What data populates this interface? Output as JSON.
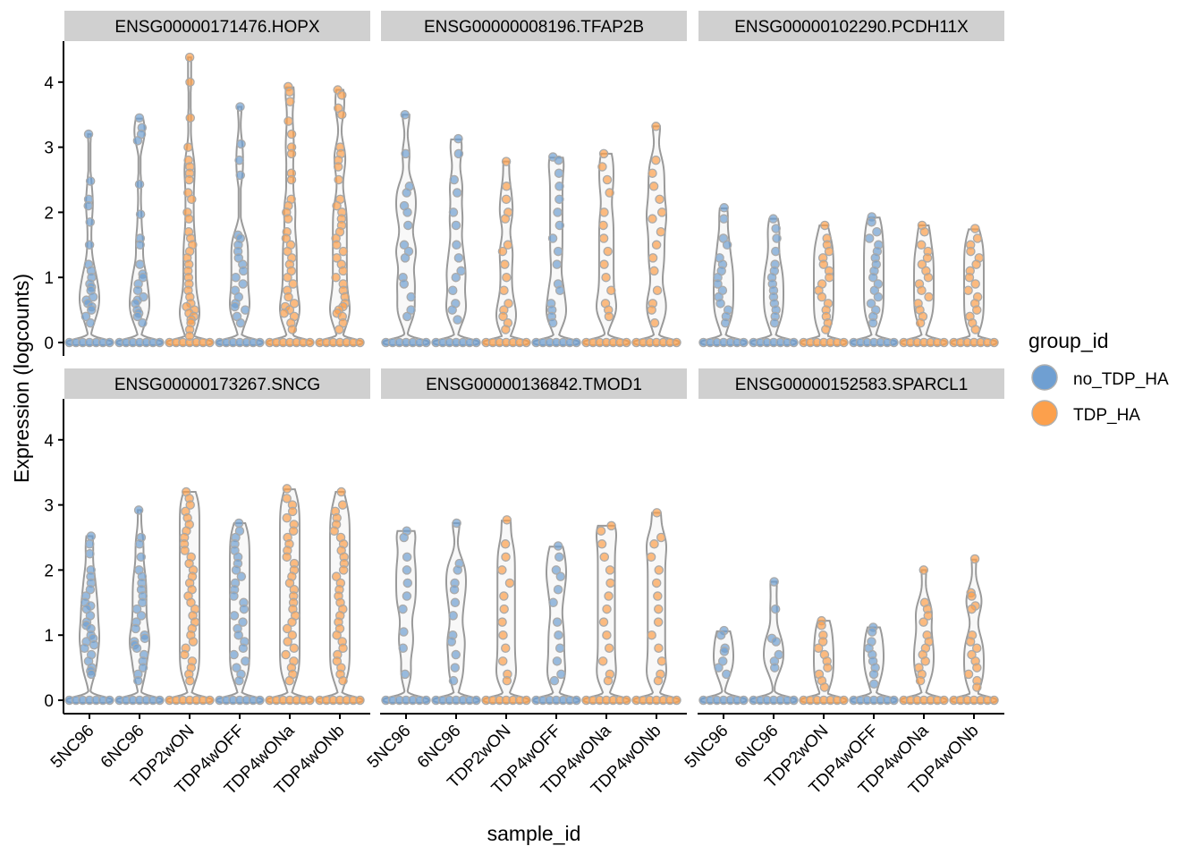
{
  "chart_data": {
    "type": "violin",
    "xlabel": "sample_id",
    "ylabel": "Expression (logcounts)",
    "ylim": [
      -0.2,
      4.6
    ],
    "yticks": [
      "0",
      "1",
      "2",
      "3",
      "4"
    ],
    "categories": [
      "5NC96",
      "6NC96",
      "TDP2wON",
      "TDP4wOFF",
      "TDP4wONa",
      "TDP4wONb"
    ],
    "category_group": [
      "no_TDP_HA",
      "no_TDP_HA",
      "TDP_HA",
      "no_TDP_HA",
      "TDP_HA",
      "TDP_HA"
    ],
    "legend": {
      "title": "group_id",
      "position": "right",
      "entries": [
        {
          "label": "no_TDP_HA",
          "color": "#6f9fd2"
        },
        {
          "label": "TDP_HA",
          "color": "#fca04c"
        }
      ]
    },
    "grid": false,
    "panels": [
      {
        "title": "ENSG00000171476.HOPX",
        "max": [
          3.2,
          3.45,
          4.38,
          3.62,
          3.93,
          3.88
        ],
        "points": [
          [
            3.2,
            2.48,
            2.2,
            2.1,
            1.85,
            1.5,
            1.2,
            1.1,
            1.0,
            0.9,
            0.85,
            0.8,
            0.7,
            0.65,
            0.6,
            0.55,
            0.5,
            0.4,
            0.3
          ],
          [
            3.45,
            3.3,
            3.2,
            3.1,
            2.43,
            1.97,
            1.6,
            1.5,
            1.2,
            1.05,
            1.0,
            0.9,
            0.8,
            0.7,
            0.65,
            0.6,
            0.5,
            0.45,
            0.4,
            0.3
          ],
          [
            4.38,
            4.0,
            3.45,
            3.0,
            2.8,
            2.7,
            2.6,
            2.5,
            2.3,
            2.2,
            2.0,
            1.9,
            1.7,
            1.6,
            1.5,
            1.4,
            1.3,
            1.2,
            1.1,
            1.0,
            0.9,
            0.8,
            0.7,
            0.6,
            0.55,
            0.5,
            0.45,
            0.4,
            0.35,
            0.3,
            0.2,
            0.1
          ],
          [
            3.62,
            3.05,
            2.8,
            2.57,
            1.65,
            1.6,
            1.5,
            1.4,
            1.3,
            1.2,
            1.1,
            1.0,
            0.9,
            0.8,
            0.7,
            0.6,
            0.55,
            0.5,
            0.4,
            0.3
          ],
          [
            3.93,
            3.85,
            3.7,
            3.4,
            3.2,
            3.0,
            2.9,
            2.6,
            2.5,
            2.2,
            2.1,
            2.0,
            1.9,
            1.7,
            1.6,
            1.5,
            1.4,
            1.3,
            1.2,
            1.1,
            1.0,
            0.9,
            0.8,
            0.7,
            0.6,
            0.55,
            0.5,
            0.45,
            0.4,
            0.3,
            0.2
          ],
          [
            3.88,
            3.8,
            3.6,
            3.5,
            3.0,
            2.9,
            2.8,
            2.7,
            2.5,
            2.2,
            2.1,
            2.0,
            1.9,
            1.8,
            1.7,
            1.6,
            1.5,
            1.4,
            1.3,
            1.2,
            1.1,
            1.0,
            0.9,
            0.8,
            0.7,
            0.6,
            0.55,
            0.5,
            0.45,
            0.4,
            0.3,
            0.2
          ]
        ]
      },
      {
        "title": "ENSG00000008196.TFAP2B",
        "max": [
          3.5,
          3.13,
          2.78,
          2.85,
          2.9,
          3.32
        ],
        "points": [
          [
            3.5,
            2.9,
            2.4,
            2.3,
            2.1,
            2.0,
            1.8,
            1.5,
            1.4,
            1.3,
            1.0,
            0.9,
            0.7,
            0.5,
            0.4
          ],
          [
            3.13,
            2.9,
            2.5,
            2.3,
            2.0,
            1.8,
            1.5,
            1.3,
            1.1,
            1.0,
            0.8,
            0.6,
            0.5,
            0.35
          ],
          [
            2.78,
            2.4,
            2.2,
            2.0,
            1.9,
            1.5,
            1.4,
            1.2,
            1.0,
            0.8,
            0.6,
            0.5,
            0.4,
            0.3,
            0.2
          ],
          [
            2.85,
            2.8,
            2.6,
            2.4,
            2.2,
            2.0,
            1.8,
            1.6,
            1.4,
            1.2,
            0.9,
            0.8,
            0.6,
            0.5,
            0.4,
            0.3
          ],
          [
            2.9,
            2.7,
            2.5,
            2.3,
            2.0,
            1.8,
            1.6,
            1.4,
            1.2,
            1.0,
            0.8,
            0.6,
            0.5,
            0.4
          ],
          [
            3.32,
            2.8,
            2.6,
            2.4,
            2.2,
            2.0,
            1.9,
            1.7,
            1.5,
            1.3,
            1.1,
            0.8,
            0.6,
            0.5,
            0.3
          ]
        ]
      },
      {
        "title": "ENSG00000102290.PCDH11X",
        "max": [
          2.07,
          1.9,
          1.8,
          1.93,
          1.8,
          1.75
        ],
        "points": [
          [
            2.07,
            1.9,
            1.6,
            1.5,
            1.3,
            1.2,
            1.1,
            1.0,
            0.9,
            0.8,
            0.7,
            0.6,
            0.5,
            0.4,
            0.3
          ],
          [
            1.9,
            1.75,
            1.6,
            1.4,
            1.2,
            1.1,
            1.0,
            0.9,
            0.8,
            0.7,
            0.6,
            0.5,
            0.4,
            0.3
          ],
          [
            1.8,
            1.6,
            1.5,
            1.4,
            1.3,
            1.2,
            1.1,
            1.0,
            0.9,
            0.8,
            0.7,
            0.6,
            0.5,
            0.4,
            0.3,
            0.2
          ],
          [
            1.93,
            1.85,
            1.7,
            1.6,
            1.5,
            1.4,
            1.3,
            1.2,
            1.1,
            1.0,
            0.9,
            0.8,
            0.7,
            0.6,
            0.5,
            0.4,
            0.3
          ],
          [
            1.8,
            1.7,
            1.5,
            1.4,
            1.3,
            1.2,
            1.1,
            1.0,
            0.9,
            0.8,
            0.7,
            0.6,
            0.5,
            0.4,
            0.3
          ],
          [
            1.75,
            1.6,
            1.5,
            1.4,
            1.3,
            1.2,
            1.1,
            1.0,
            0.9,
            0.8,
            0.7,
            0.6,
            0.5,
            0.4,
            0.3,
            0.2
          ]
        ]
      },
      {
        "title": "ENSG00000173267.SNCG",
        "max": [
          2.52,
          2.92,
          3.2,
          2.72,
          3.25,
          3.2
        ],
        "points": [
          [
            2.52,
            2.4,
            2.25,
            2.0,
            1.9,
            1.8,
            1.7,
            1.6,
            1.5,
            1.45,
            1.4,
            1.3,
            1.2,
            1.15,
            1.1,
            1.0,
            0.95,
            0.9,
            0.85,
            0.8,
            0.7,
            0.6,
            0.5,
            0.45,
            0.4
          ],
          [
            2.92,
            2.5,
            2.4,
            2.2,
            2.0,
            1.9,
            1.8,
            1.7,
            1.6,
            1.5,
            1.4,
            1.3,
            1.2,
            1.1,
            1.0,
            0.95,
            0.9,
            0.85,
            0.8,
            0.7,
            0.6,
            0.5,
            0.4,
            0.3
          ],
          [
            3.2,
            3.1,
            3.0,
            2.9,
            2.8,
            2.7,
            2.6,
            2.5,
            2.4,
            2.3,
            2.2,
            2.1,
            2.0,
            1.9,
            1.8,
            1.7,
            1.6,
            1.5,
            1.4,
            1.3,
            1.2,
            1.1,
            1.0,
            0.9,
            0.8,
            0.7,
            0.6,
            0.5,
            0.4,
            0.3
          ],
          [
            2.72,
            2.6,
            2.5,
            2.4,
            2.3,
            2.2,
            2.1,
            2.0,
            1.9,
            1.8,
            1.7,
            1.6,
            1.5,
            1.4,
            1.3,
            1.2,
            1.1,
            1.0,
            0.9,
            0.8,
            0.7,
            0.6,
            0.5,
            0.4,
            0.3
          ],
          [
            3.25,
            3.1,
            3.0,
            2.9,
            2.8,
            2.7,
            2.6,
            2.5,
            2.4,
            2.3,
            2.2,
            2.1,
            2.0,
            1.9,
            1.8,
            1.7,
            1.6,
            1.5,
            1.4,
            1.3,
            1.2,
            1.1,
            1.0,
            0.9,
            0.8,
            0.7,
            0.6,
            0.5,
            0.4,
            0.3
          ],
          [
            3.2,
            3.0,
            2.9,
            2.8,
            2.7,
            2.6,
            2.5,
            2.4,
            2.3,
            2.2,
            2.1,
            2.0,
            1.9,
            1.8,
            1.7,
            1.6,
            1.5,
            1.4,
            1.3,
            1.2,
            1.1,
            1.0,
            0.9,
            0.8,
            0.7,
            0.6,
            0.5,
            0.4,
            0.3
          ]
        ]
      },
      {
        "title": "ENSG00000136842.TMOD1",
        "max": [
          2.6,
          2.72,
          2.77,
          2.37,
          2.68,
          2.88
        ],
        "points": [
          [
            2.6,
            2.5,
            2.2,
            2.0,
            1.8,
            1.6,
            1.4,
            1.05,
            0.8,
            0.4
          ],
          [
            2.72,
            2.1,
            2.0,
            1.8,
            1.7,
            1.5,
            1.3,
            1.0,
            0.9,
            0.7,
            0.5,
            0.3
          ],
          [
            2.77,
            2.4,
            2.2,
            2.0,
            1.8,
            1.6,
            1.4,
            1.2,
            1.0,
            0.8,
            0.6,
            0.4,
            0.3
          ],
          [
            2.37,
            2.2,
            2.0,
            1.9,
            1.7,
            1.5,
            1.2,
            1.0,
            0.8,
            0.6,
            0.4,
            0.3
          ],
          [
            2.68,
            2.6,
            2.4,
            2.2,
            2.0,
            1.8,
            1.6,
            1.4,
            1.2,
            1.0,
            0.8,
            0.6,
            0.4,
            0.3
          ],
          [
            2.88,
            2.5,
            2.4,
            2.2,
            2.0,
            1.8,
            1.6,
            1.4,
            1.2,
            1.0,
            0.8,
            0.6,
            0.4,
            0.3
          ]
        ]
      },
      {
        "title": "ENSG00000152583.SPARCL1",
        "max": [
          1.07,
          1.82,
          1.22,
          1.12,
          2.0,
          2.17
        ],
        "points": [
          [
            1.07,
            1.0,
            0.8,
            0.75,
            0.6,
            0.5,
            0.4
          ],
          [
            1.82,
            1.4,
            0.95,
            0.9,
            0.7,
            0.6,
            0.5
          ],
          [
            1.22,
            1.15,
            1.0,
            0.9,
            0.8,
            0.7,
            0.6,
            0.5,
            0.4,
            0.3,
            0.2
          ],
          [
            1.12,
            1.05,
            0.9,
            0.8,
            0.7,
            0.6,
            0.5,
            0.4,
            0.25
          ],
          [
            2.0,
            1.5,
            1.4,
            1.3,
            1.2,
            1.0,
            0.9,
            0.8,
            0.7,
            0.6,
            0.5,
            0.4,
            0.3
          ],
          [
            2.17,
            1.65,
            1.6,
            1.45,
            1.4,
            1.0,
            0.9,
            0.8,
            0.7,
            0.6,
            0.5,
            0.4,
            0.3,
            0.2
          ]
        ]
      }
    ]
  }
}
